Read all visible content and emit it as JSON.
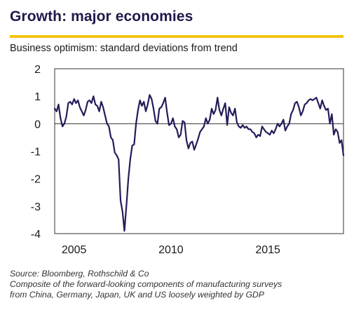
{
  "header": {
    "title": "Growth: major economies",
    "subtitle": "Business optimism: standard deviations from trend"
  },
  "footer": {
    "source": "Source: Bloomberg, Rothschild & Co",
    "note_line1": "Composite of the forward-looking components of manufacturing surveys",
    "note_line2": "from China, Germany, Japan, UK and US loosely weighted by GDP"
  },
  "colors": {
    "line": "#221d59",
    "accent_rule": "#f1c40f",
    "axis": "#333333"
  },
  "chart_data": {
    "type": "line",
    "title": "Growth: major economies",
    "subtitle": "Business optimism: standard deviations from trend",
    "xlabel": "",
    "ylabel": "",
    "xlim": [
      2004.0,
      2018.9
    ],
    "ylim": [
      -4,
      2
    ],
    "yticks": [
      2,
      1,
      0,
      -1,
      -2,
      -3,
      -4
    ],
    "xticks": [
      2005,
      2010,
      2015
    ],
    "grid": false,
    "legend": "none",
    "series": [
      {
        "x": [
          2004.0,
          2004.1,
          2004.2,
          2004.3,
          2004.4,
          2004.5,
          2004.6,
          2004.7,
          2004.8,
          2004.9,
          2005.0,
          2005.1,
          2005.2,
          2005.3,
          2005.4,
          2005.5,
          2005.6,
          2005.7,
          2005.8,
          2005.9,
          2006.0,
          2006.1,
          2006.2,
          2006.3,
          2006.4,
          2006.5,
          2006.6,
          2006.7,
          2006.8,
          2006.9,
          2007.0,
          2007.1,
          2007.2,
          2007.3,
          2007.4,
          2007.5,
          2007.6,
          2007.7,
          2007.8,
          2007.9,
          2008.0,
          2008.1,
          2008.2,
          2008.3,
          2008.4,
          2008.5,
          2008.6,
          2008.7,
          2008.8,
          2008.9,
          2009.0,
          2009.1,
          2009.2,
          2009.3,
          2009.4,
          2009.5,
          2009.6,
          2009.7,
          2009.8,
          2009.9,
          2010.0,
          2010.1,
          2010.2,
          2010.3,
          2010.4,
          2010.5,
          2010.6,
          2010.7,
          2010.8,
          2010.9,
          2011.0,
          2011.1,
          2011.2,
          2011.3,
          2011.4,
          2011.5,
          2011.6,
          2011.7,
          2011.8,
          2011.9,
          2012.0,
          2012.1,
          2012.2,
          2012.3,
          2012.4,
          2012.5,
          2012.6,
          2012.7,
          2012.8,
          2012.9,
          2013.0,
          2013.1,
          2013.2,
          2013.3,
          2013.4,
          2013.5,
          2013.6,
          2013.7,
          2013.8,
          2013.9,
          2014.0,
          2014.1,
          2014.2,
          2014.3,
          2014.4,
          2014.5,
          2014.6,
          2014.7,
          2014.8,
          2014.9,
          2015.0,
          2015.1,
          2015.2,
          2015.3,
          2015.4,
          2015.5,
          2015.6,
          2015.7,
          2015.8,
          2015.9,
          2016.0,
          2016.1,
          2016.2,
          2016.3,
          2016.4,
          2016.5,
          2016.6,
          2016.7,
          2016.8,
          2016.9,
          2017.0,
          2017.1,
          2017.2,
          2017.3,
          2017.4,
          2017.5,
          2017.6,
          2017.7,
          2017.8,
          2017.9,
          2018.0,
          2018.1,
          2018.2,
          2018.3,
          2018.4,
          2018.5,
          2018.6,
          2018.7,
          2018.8,
          2018.9
        ],
        "values": [
          0.55,
          0.45,
          0.7,
          0.2,
          -0.1,
          0.0,
          0.25,
          0.75,
          0.8,
          0.7,
          0.9,
          0.75,
          0.85,
          0.6,
          0.45,
          0.3,
          0.5,
          0.8,
          0.85,
          0.75,
          1.0,
          0.7,
          0.65,
          0.45,
          0.8,
          0.6,
          0.3,
          0.0,
          -0.1,
          -0.5,
          -0.6,
          -1.05,
          -1.15,
          -1.3,
          -2.8,
          -3.2,
          -3.9,
          -3.0,
          -2.0,
          -1.3,
          -0.8,
          -0.75,
          0.0,
          0.5,
          0.85,
          0.65,
          0.8,
          0.45,
          0.7,
          1.05,
          0.9,
          0.55,
          0.1,
          0.0,
          0.55,
          0.6,
          0.75,
          0.95,
          0.4,
          -0.05,
          0.0,
          0.2,
          -0.1,
          -0.2,
          -0.5,
          -0.4,
          0.1,
          0.05,
          -0.6,
          -0.9,
          -0.7,
          -0.65,
          -0.95,
          -0.75,
          -0.55,
          -0.3,
          -0.2,
          -0.1,
          0.2,
          0.0,
          0.15,
          0.55,
          0.35,
          0.5,
          0.95,
          0.5,
          0.3,
          0.55,
          0.75,
          -0.05,
          0.6,
          0.4,
          0.3,
          0.55,
          0.05,
          -0.1,
          -0.15,
          -0.05,
          -0.15,
          -0.1,
          -0.2,
          -0.2,
          -0.3,
          -0.35,
          -0.5,
          -0.4,
          -0.45,
          -0.1,
          -0.2,
          -0.3,
          -0.35,
          -0.4,
          -0.25,
          -0.35,
          -0.2,
          0.0,
          -0.1,
          0.0,
          0.15,
          -0.25,
          -0.1,
          0.0,
          0.35,
          0.5,
          0.75,
          0.8,
          0.6,
          0.3,
          0.45,
          0.7,
          0.75,
          0.85,
          0.9,
          0.85,
          0.9,
          0.95,
          0.75,
          0.55,
          0.85,
          0.65,
          0.5,
          0.55,
          0.0,
          0.35,
          -0.4,
          -0.2,
          -0.3,
          -0.7,
          -0.6,
          -1.15
        ]
      }
    ]
  }
}
